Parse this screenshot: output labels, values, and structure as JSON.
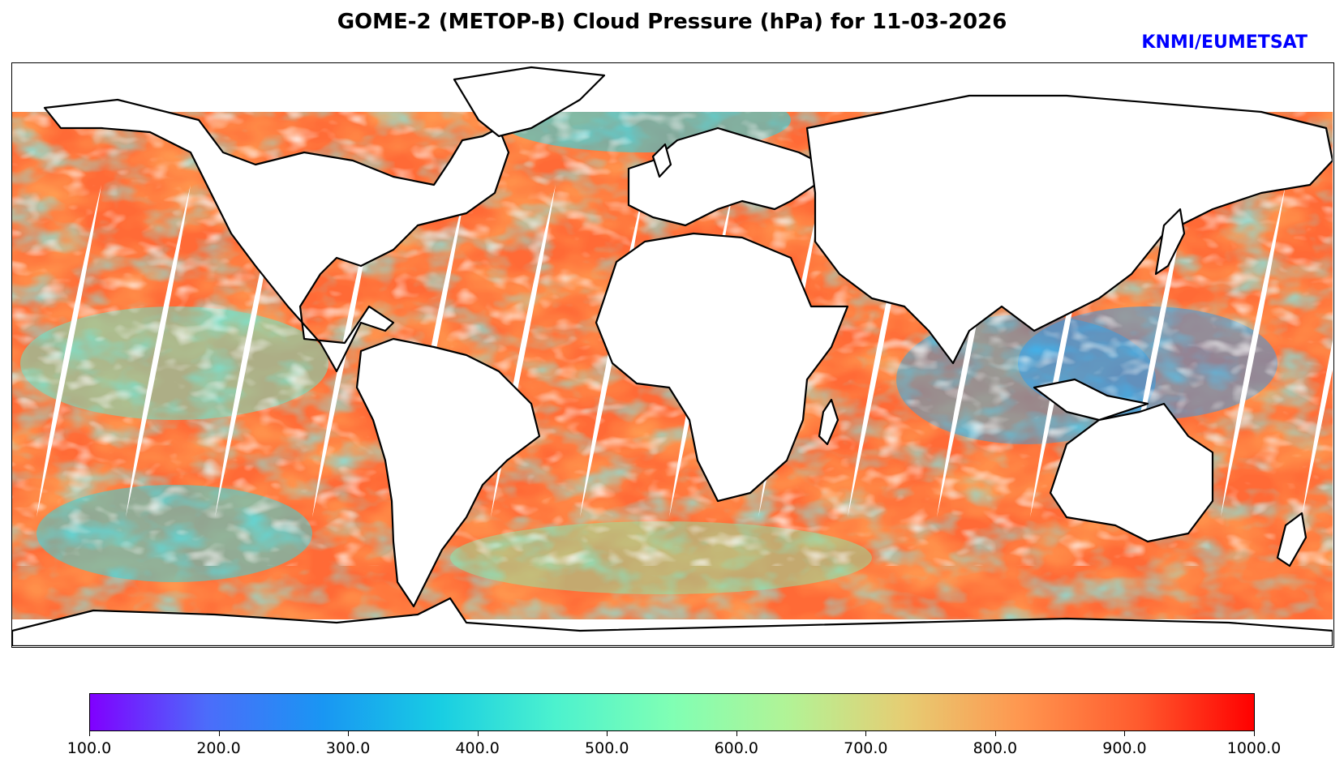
{
  "title": "GOME-2 (METOP-B) Cloud Pressure (hPa) for 11-03-2026",
  "credit": "KNMI/EUMETSAT",
  "credit_color": "#0000ff",
  "map": {
    "projection": "plate-carree",
    "lon_range": [
      -180,
      180
    ],
    "lat_range": [
      -85,
      85
    ],
    "variable": "cloud pressure",
    "units": "hPa"
  },
  "colorbar": {
    "min": 100.0,
    "max": 1000.0,
    "tick_labels": [
      "100.0",
      "200.0",
      "300.0",
      "400.0",
      "500.0",
      "600.0",
      "700.0",
      "800.0",
      "900.0",
      "1000.0"
    ],
    "colormap": "rainbow",
    "stops": [
      "#8000ff",
      "#4c6cfa",
      "#1996f3",
      "#18cde3",
      "#4cf2ce",
      "#80ffb4",
      "#b2f396",
      "#e6cd73",
      "#ff964f",
      "#ff5b2e",
      "#ff0000"
    ]
  }
}
